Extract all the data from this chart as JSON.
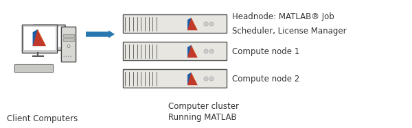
{
  "bg_color": "#ffffff",
  "arrow_color": "#2878b0",
  "server_box_color": "#e8e6e0",
  "server_box_edge": "#555555",
  "server_vent_color": "#666666",
  "text_color": "#333333",
  "client_label": "Client Computers",
  "cluster_label1": "Computer cluster",
  "cluster_label2": "Running MATLAB",
  "headnode_label1": "Headnode: MATLAB® Job",
  "headnode_label2": "Scheduler, License Manager",
  "compute1_label": "Compute node 1",
  "compute2_label": "Compute node 2",
  "font_size": 8.5,
  "label_font_size": 8.5,
  "xlim": [
    0,
    6.0
  ],
  "ylim": [
    0,
    1.87
  ],
  "figw": 6.0,
  "figh": 1.87,
  "dpi": 100
}
